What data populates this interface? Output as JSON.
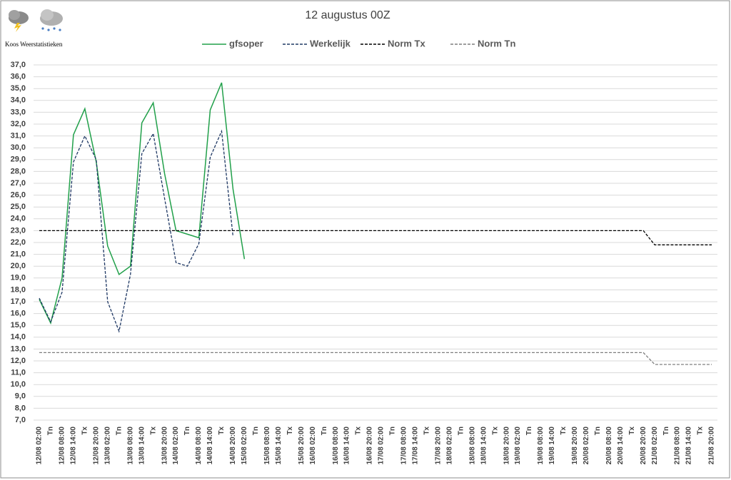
{
  "chart_data": {
    "type": "line",
    "title": "12 augustus 00Z",
    "subtitle": "Koos Weerstatistieken",
    "categories": [
      "12/08 02:00",
      "Tn",
      "12/08 08:00",
      "12/08 14:00",
      "Tx",
      "12/08 20:00",
      "13/08 02:00",
      "Tn",
      "13/08 08:00",
      "13/08 14:00",
      "Tx",
      "13/08 20:00",
      "14/08 02:00",
      "Tn",
      "14/08 08:00",
      "14/08 14:00",
      "Tx",
      "14/08 20:00",
      "15/08 02:00",
      "Tn",
      "15/08 08:00",
      "15/08 14:00",
      "Tx",
      "15/08 20:00",
      "16/08 02:00",
      "Tn",
      "16/08 08:00",
      "16/08 14:00",
      "Tx",
      "16/08 20:00",
      "17/08 02:00",
      "Tn",
      "17/08 08:00",
      "17/08 14:00",
      "Tx",
      "17/08 20:00",
      "18/08 02:00",
      "Tn",
      "18/08 08:00",
      "18/08 14:00",
      "Tx",
      "18/08 20:00",
      "19/08 02:00",
      "Tn",
      "19/08 08:00",
      "19/08 14:00",
      "Tx",
      "19/08 20:00",
      "20/08 02:00",
      "Tn",
      "20/08 08:00",
      "20/08 14:00",
      "Tx",
      "20/08 20:00",
      "21/08 02:00",
      "Tn",
      "21/08 08:00",
      "21/08 14:00",
      "Tx",
      "21/08 20:00"
    ],
    "series": [
      {
        "name": "gfsoper",
        "color": "#21a04a",
        "style": "solid",
        "values": [
          17.2,
          15.2,
          19.0,
          31.1,
          33.3,
          28.8,
          21.7,
          19.3,
          20.0,
          32.1,
          33.8,
          27.8,
          23.0,
          22.7,
          22.4,
          33.2,
          35.5,
          26.5,
          20.6,
          null,
          null,
          null,
          null,
          null,
          null,
          null,
          null,
          null,
          null,
          null,
          null,
          null,
          null,
          null,
          null,
          null,
          null,
          null,
          null,
          null,
          null,
          null,
          null,
          null,
          null,
          null,
          null,
          null,
          null,
          null,
          null,
          null,
          null,
          null,
          null,
          null,
          null,
          null,
          null,
          null
        ]
      },
      {
        "name": "Werkelijk",
        "color": "#1f3864",
        "style": "dashed",
        "values": [
          17.3,
          15.3,
          17.8,
          28.8,
          31.0,
          29.0,
          17.0,
          14.5,
          19.3,
          29.5,
          31.2,
          25.7,
          20.3,
          20.0,
          21.9,
          29.2,
          31.4,
          22.5,
          null,
          null,
          null,
          null,
          null,
          null,
          null,
          null,
          null,
          null,
          null,
          null,
          null,
          null,
          null,
          null,
          null,
          null,
          null,
          null,
          null,
          null,
          null,
          null,
          null,
          null,
          null,
          null,
          null,
          null,
          null,
          null,
          null,
          null,
          null,
          null,
          null,
          null,
          null,
          null,
          null,
          null
        ]
      },
      {
        "name": "Norm Tx",
        "color": "#000000",
        "style": "dashed",
        "values": [
          23,
          23,
          23,
          23,
          23,
          23,
          23,
          23,
          23,
          23,
          23,
          23,
          23,
          23,
          23,
          23,
          23,
          23,
          23,
          23,
          23,
          23,
          23,
          23,
          23,
          23,
          23,
          23,
          23,
          23,
          23,
          23,
          23,
          23,
          23,
          23,
          23,
          23,
          23,
          23,
          23,
          23,
          23,
          23,
          23,
          23,
          23,
          23,
          23,
          23,
          23,
          23,
          23,
          23,
          21.8,
          21.8,
          21.8,
          21.8,
          21.8,
          21.8
        ]
      },
      {
        "name": "Norm Tn",
        "color": "#7f7f7f",
        "style": "dashed",
        "values": [
          12.7,
          12.7,
          12.7,
          12.7,
          12.7,
          12.7,
          12.7,
          12.7,
          12.7,
          12.7,
          12.7,
          12.7,
          12.7,
          12.7,
          12.7,
          12.7,
          12.7,
          12.7,
          12.7,
          12.7,
          12.7,
          12.7,
          12.7,
          12.7,
          12.7,
          12.7,
          12.7,
          12.7,
          12.7,
          12.7,
          12.7,
          12.7,
          12.7,
          12.7,
          12.7,
          12.7,
          12.7,
          12.7,
          12.7,
          12.7,
          12.7,
          12.7,
          12.7,
          12.7,
          12.7,
          12.7,
          12.7,
          12.7,
          12.7,
          12.7,
          12.7,
          12.7,
          12.7,
          12.7,
          11.7,
          11.7,
          11.7,
          11.7,
          11.7,
          11.7
        ]
      }
    ],
    "ylim": [
      7,
      37
    ],
    "yticks": [
      {
        "value": 7,
        "label": "7,0"
      },
      {
        "value": 8,
        "label": "8,0"
      },
      {
        "value": 9,
        "label": "9,0"
      },
      {
        "value": 10,
        "label": "10,0"
      },
      {
        "value": 11,
        "label": "11,0"
      },
      {
        "value": 12,
        "label": "12,0"
      },
      {
        "value": 13,
        "label": "13,0"
      },
      {
        "value": 14,
        "label": "14,0"
      },
      {
        "value": 15,
        "label": "15,0"
      },
      {
        "value": 16,
        "label": "16,0"
      },
      {
        "value": 17,
        "label": "17,0"
      },
      {
        "value": 18,
        "label": "18,0"
      },
      {
        "value": 19,
        "label": "19,0"
      },
      {
        "value": 20,
        "label": "20,0"
      },
      {
        "value": 21,
        "label": "21,0"
      },
      {
        "value": 22,
        "label": "22,0"
      },
      {
        "value": 23,
        "label": "23,0"
      },
      {
        "value": 24,
        "label": "24,0"
      },
      {
        "value": 25,
        "label": "25,0"
      },
      {
        "value": 26,
        "label": "26,0"
      },
      {
        "value": 27,
        "label": "27,0"
      },
      {
        "value": 28,
        "label": "28,0"
      },
      {
        "value": 29,
        "label": "29,0"
      },
      {
        "value": 30,
        "label": "30,0"
      },
      {
        "value": 31,
        "label": "31,0"
      },
      {
        "value": 32,
        "label": "32,0"
      },
      {
        "value": 33,
        "label": "33,0"
      },
      {
        "value": 34,
        "label": "34,0"
      },
      {
        "value": 35,
        "label": "35,0"
      },
      {
        "value": 36,
        "label": "36,0"
      },
      {
        "value": 37,
        "label": "37,0"
      }
    ],
    "grid": true,
    "legend": "top"
  }
}
